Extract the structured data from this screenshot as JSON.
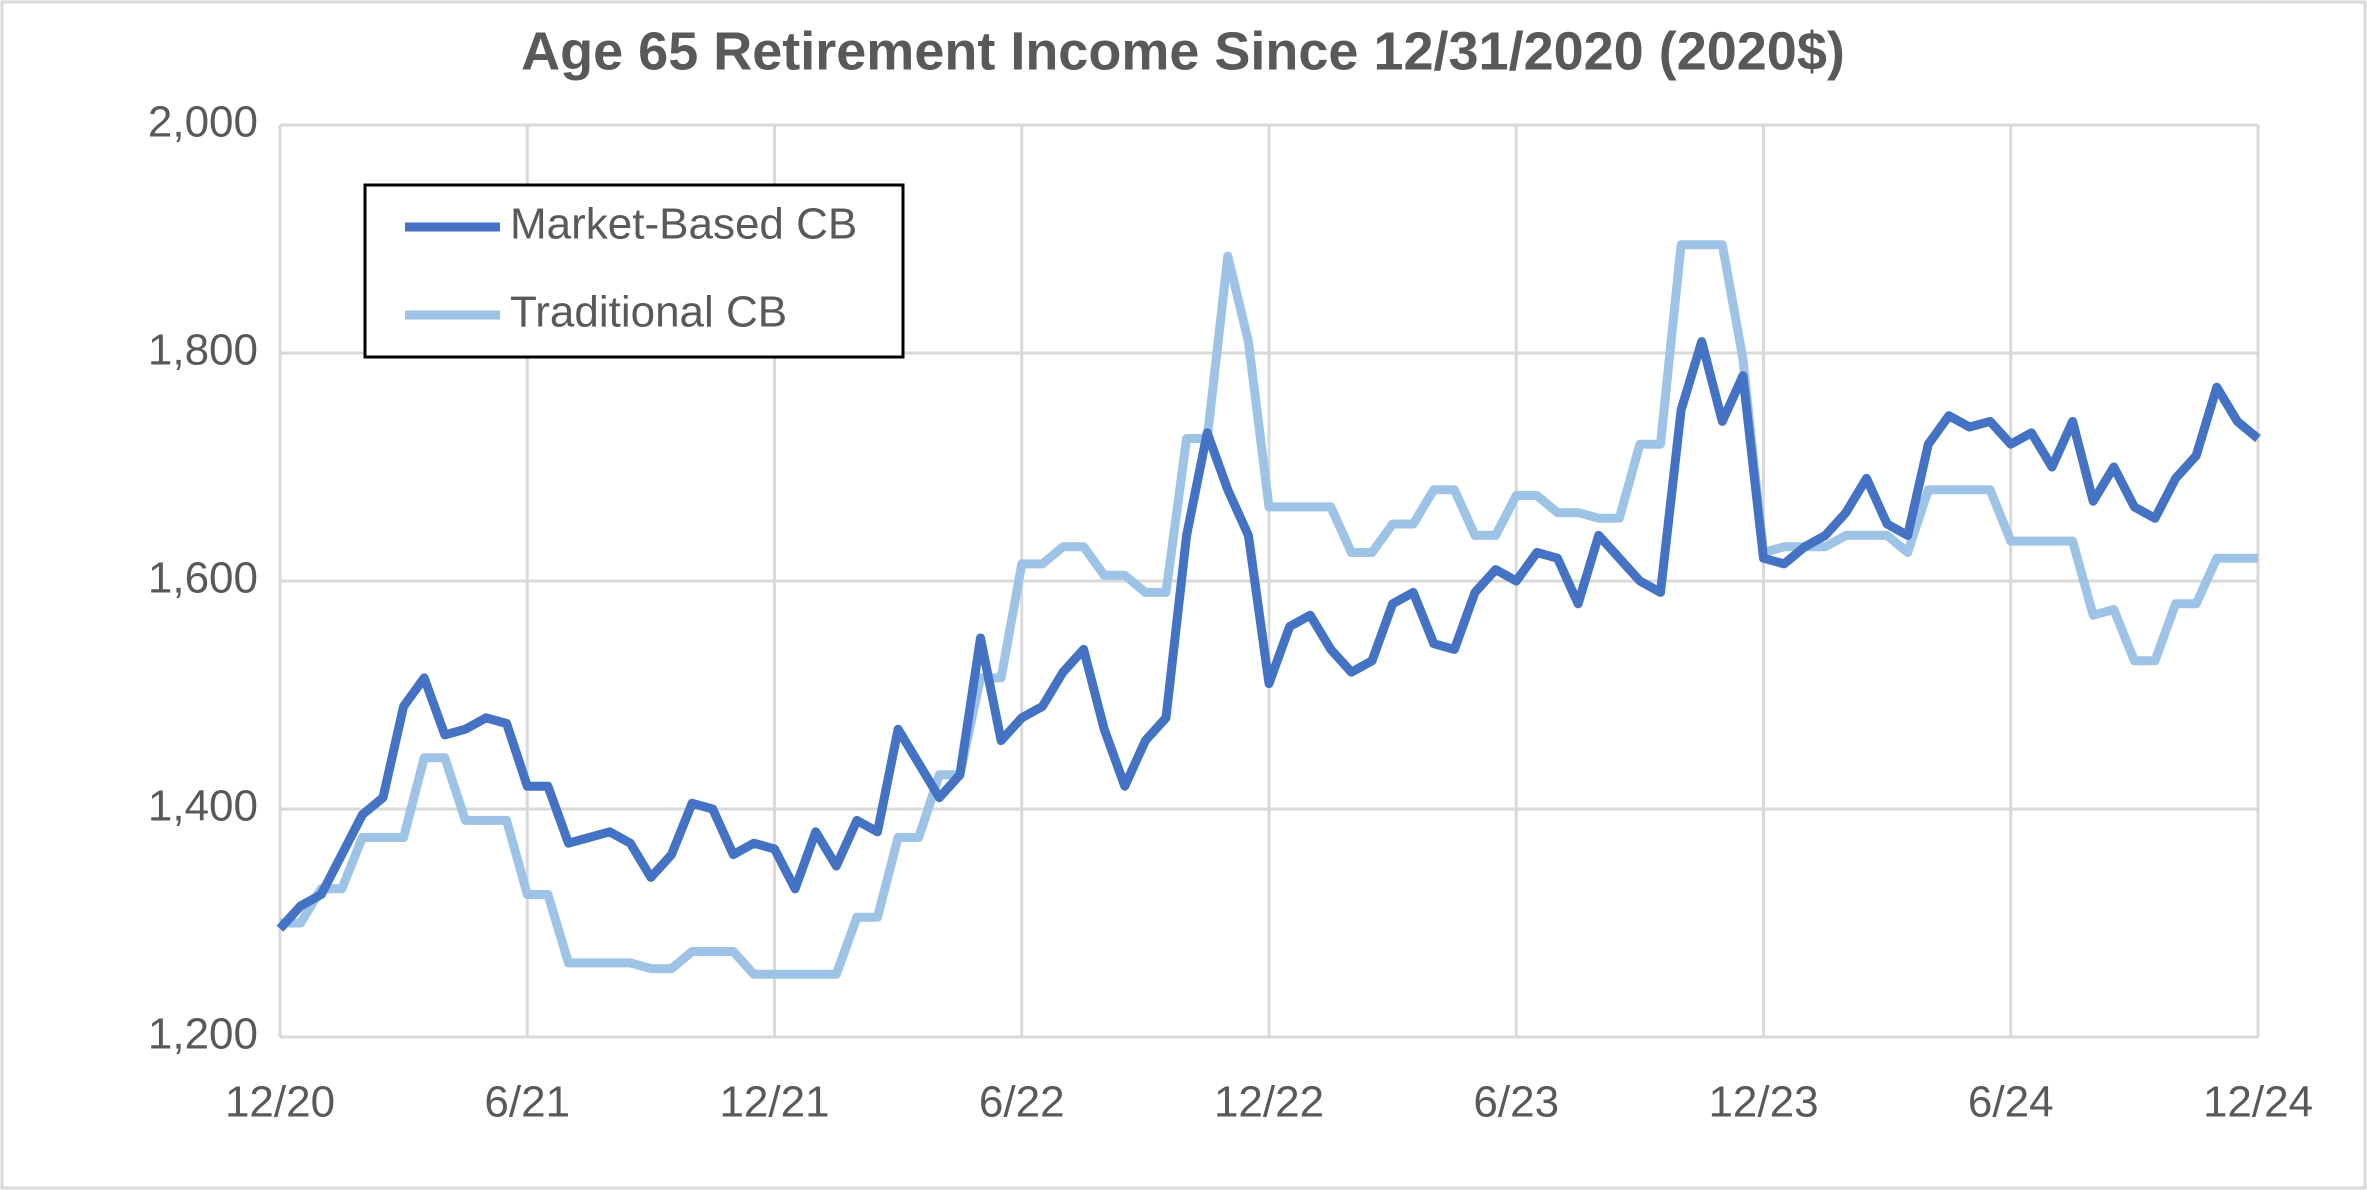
{
  "chart_data": {
    "type": "line",
    "title": "Age 65 Retirement Income Since 12/31/2020 (2020$)",
    "categories": [
      "12/20",
      null,
      null,
      null,
      null,
      null,
      null,
      null,
      null,
      null,
      null,
      null,
      "6/21",
      null,
      null,
      null,
      null,
      null,
      null,
      null,
      null,
      null,
      null,
      null,
      "12/21",
      null,
      null,
      null,
      null,
      null,
      null,
      null,
      null,
      null,
      null,
      null,
      "6/22",
      null,
      null,
      null,
      null,
      null,
      null,
      null,
      null,
      null,
      null,
      null,
      "12/22",
      null,
      null,
      null,
      null,
      null,
      null,
      null,
      null,
      null,
      null,
      null,
      "6/23",
      null,
      null,
      null,
      null,
      null,
      null,
      null,
      null,
      null,
      null,
      null,
      "12/23",
      null,
      null,
      null,
      null,
      null,
      null,
      null,
      null,
      null,
      null,
      null,
      "6/24",
      null,
      null,
      null,
      null,
      null,
      null,
      null,
      null,
      null,
      null,
      null,
      "12/24"
    ],
    "series": [
      {
        "name": "Market-Based CB",
        "color": "#4472c4",
        "values": [
          1295,
          1315,
          1325,
          1360,
          1395,
          1410,
          1490,
          1515,
          1465,
          1470,
          1480,
          1475,
          1420,
          1420,
          1370,
          1375,
          1380,
          1370,
          1340,
          1360,
          1405,
          1400,
          1360,
          1370,
          1365,
          1330,
          1380,
          1350,
          1390,
          1380,
          1470,
          1440,
          1410,
          1430,
          1550,
          1460,
          1480,
          1490,
          1520,
          1540,
          1470,
          1420,
          1460,
          1480,
          1640,
          1730,
          1680,
          1640,
          1510,
          1560,
          1570,
          1540,
          1520,
          1530,
          1580,
          1590,
          1545,
          1540,
          1590,
          1610,
          1600,
          1625,
          1620,
          1580,
          1640,
          1620,
          1600,
          1590,
          1750,
          1810,
          1740,
          1780,
          1620,
          1615,
          1630,
          1640,
          1660,
          1690,
          1650,
          1640,
          1720,
          1745,
          1735,
          1740,
          1720,
          1730,
          1700,
          1740,
          1670,
          1700,
          1665,
          1655,
          1690,
          1710,
          1770,
          1740,
          1725
        ]
      },
      {
        "name": "Traditional CB",
        "color": "#9dc3e6",
        "values": [
          1300,
          1300,
          1330,
          1330,
          1375,
          1375,
          1375,
          1445,
          1445,
          1390,
          1390,
          1390,
          1325,
          1325,
          1265,
          1265,
          1265,
          1265,
          1260,
          1260,
          1275,
          1275,
          1275,
          1255,
          1255,
          1255,
          1255,
          1255,
          1305,
          1305,
          1375,
          1375,
          1430,
          1430,
          1515,
          1515,
          1615,
          1615,
          1630,
          1630,
          1605,
          1605,
          1590,
          1590,
          1725,
          1725,
          1885,
          1810,
          1665,
          1665,
          1665,
          1665,
          1625,
          1625,
          1650,
          1650,
          1680,
          1680,
          1640,
          1640,
          1675,
          1675,
          1660,
          1660,
          1655,
          1655,
          1720,
          1720,
          1895,
          1895,
          1895,
          1795,
          1625,
          1630,
          1630,
          1630,
          1640,
          1640,
          1640,
          1625,
          1680,
          1680,
          1680,
          1680,
          1635,
          1635,
          1635,
          1635,
          1570,
          1575,
          1530,
          1530,
          1580,
          1580,
          1620,
          1620,
          1620
        ]
      }
    ],
    "ylim": [
      1200,
      2000
    ],
    "yticks": [
      {
        "value": 1200,
        "label": "1,200"
      },
      {
        "value": 1400,
        "label": "1,400"
      },
      {
        "value": 1600,
        "label": "1,600"
      },
      {
        "value": 1800,
        "label": "1,800"
      },
      {
        "value": 2000,
        "label": "2,000"
      }
    ],
    "grid": true,
    "legend": "upper left"
  }
}
